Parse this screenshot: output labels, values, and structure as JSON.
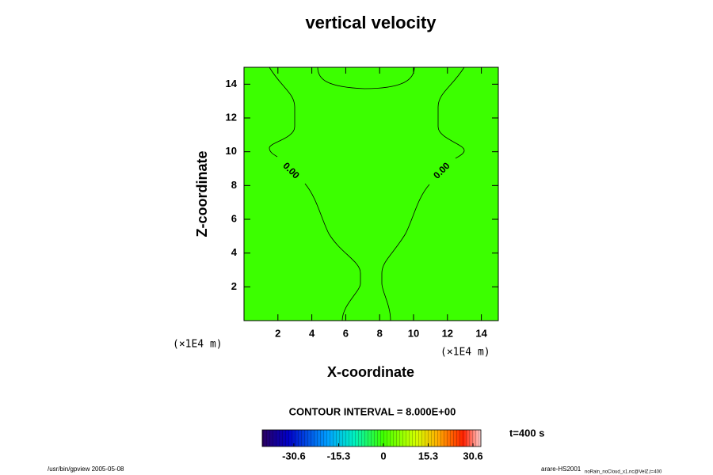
{
  "chart_data": {
    "type": "contour",
    "title": "vertical velocity",
    "x_label": "X-coordinate",
    "y_label": "Z-coordinate",
    "x_unit": "(×1E4 m)",
    "y_unit": "(×1E4 m)",
    "xlim": [
      0,
      15
    ],
    "ylim": [
      0,
      15
    ],
    "xticks": [
      2,
      4,
      6,
      8,
      10,
      12,
      14
    ],
    "yticks": [
      2,
      4,
      6,
      8,
      10,
      12,
      14
    ],
    "fill_color": "#3cff00",
    "contour_levels": [
      {
        "value": 0,
        "label": "0.00"
      }
    ],
    "contour_interval_text": "CONTOUR INTERVAL = 8.000E+00",
    "time_text": "t=400 s",
    "colorbar_lim": [
      -41.4,
      33.3
    ],
    "colorbar_ticks": [
      -30.6,
      -15.3,
      0,
      15.3,
      30.6
    ],
    "footer_left": "/usr/bin/gpview 2005-05-08",
    "footer_right": "arare-HS2001",
    "footer_right_sub": "noRain_noCloud_x1.nc@VelZ,t=400"
  }
}
